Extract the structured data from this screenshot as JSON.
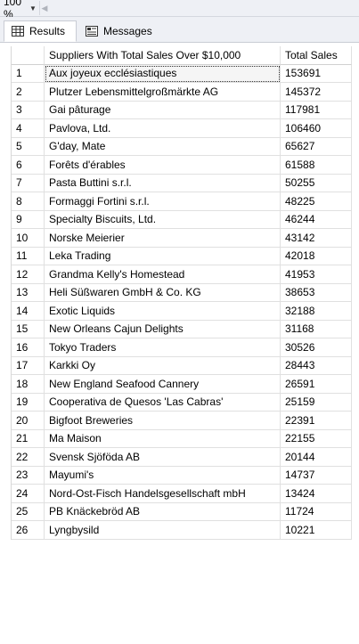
{
  "toolbar": {
    "zoom_value": "100 %"
  },
  "tabs": [
    {
      "label": "Results"
    },
    {
      "label": "Messages"
    }
  ],
  "grid": {
    "columns": [
      "",
      "Suppliers With Total Sales Over $10,000",
      "Total Sales"
    ],
    "rows": [
      [
        "1",
        "Aux joyeux ecclésiastiques",
        "153691"
      ],
      [
        "2",
        "Plutzer Lebensmittelgroßmärkte AG",
        "145372"
      ],
      [
        "3",
        "Gai pâturage",
        "117981"
      ],
      [
        "4",
        "Pavlova, Ltd.",
        "106460"
      ],
      [
        "5",
        "G'day, Mate",
        "65627"
      ],
      [
        "6",
        "Forêts d'érables",
        "61588"
      ],
      [
        "7",
        "Pasta Buttini s.r.l.",
        "50255"
      ],
      [
        "8",
        "Formaggi Fortini s.r.l.",
        "48225"
      ],
      [
        "9",
        "Specialty Biscuits, Ltd.",
        "46244"
      ],
      [
        "10",
        "Norske Meierier",
        "43142"
      ],
      [
        "11",
        "Leka Trading",
        "42018"
      ],
      [
        "12",
        "Grandma Kelly's Homestead",
        "41953"
      ],
      [
        "13",
        "Heli Süßwaren GmbH & Co. KG",
        "38653"
      ],
      [
        "14",
        "Exotic Liquids",
        "32188"
      ],
      [
        "15",
        "New Orleans Cajun Delights",
        "31168"
      ],
      [
        "16",
        "Tokyo Traders",
        "30526"
      ],
      [
        "17",
        "Karkki Oy",
        "28443"
      ],
      [
        "18",
        "New England Seafood Cannery",
        "26591"
      ],
      [
        "19",
        "Cooperativa de Quesos 'Las Cabras'",
        "25159"
      ],
      [
        "20",
        "Bigfoot Breweries",
        "22391"
      ],
      [
        "21",
        "Ma Maison",
        "22155"
      ],
      [
        "22",
        "Svensk Sjöföda AB",
        "20144"
      ],
      [
        "23",
        "Mayumi's",
        "14737"
      ],
      [
        "24",
        "Nord-Ost-Fisch Handelsgesellschaft mbH",
        "13424"
      ],
      [
        "25",
        "PB Knäckebröd AB",
        "11724"
      ],
      [
        "26",
        "Lyngbysild",
        "10221"
      ]
    ]
  }
}
